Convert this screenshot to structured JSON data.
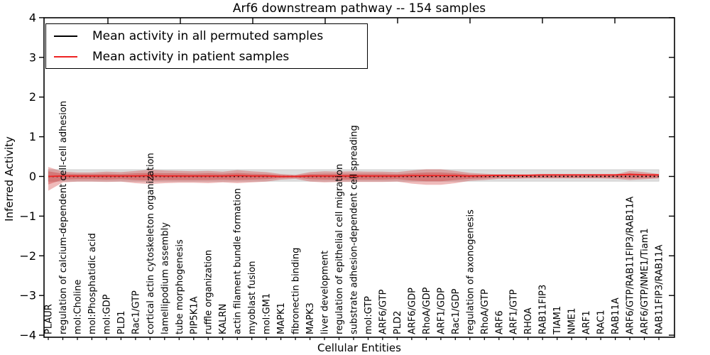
{
  "title": "Arf6 downstream pathway -- 154 samples",
  "axes": {
    "x_label": "Cellular Entities",
    "y_label": "Inferred Activity"
  },
  "legend": {
    "items": [
      {
        "label": "Mean activity in all permuted samples",
        "color": "#000000"
      },
      {
        "label": "Mean activity in patient samples",
        "color": "#ee2222"
      }
    ]
  },
  "chart_data": {
    "type": "line",
    "title": "Arf6 downstream pathway -- 154 samples",
    "xlabel": "Cellular Entities",
    "ylabel": "Inferred Activity",
    "ylim": [
      -4,
      4
    ],
    "yticks": [
      "4",
      "3",
      "2",
      "1",
      "0",
      "−1",
      "−2",
      "−3",
      "−4"
    ],
    "grid": false,
    "legend_position": "upper left",
    "categories": [
      "PLAUR",
      "regulation of calcium-dependent cell-cell adhesion",
      "mol:Choline",
      "mol:Phosphatidic acid",
      "mol:GDP",
      "PLD1",
      "Rac1/GTP",
      "cortical actin cytoskeleton organization",
      "lamellipodium assembly",
      "tube morphogenesis",
      "PIP5K1A",
      "ruffle organization",
      "KALRN",
      "actin filament bundle formation",
      "myoblast fusion",
      "mol:GM1",
      "MAPK1",
      "fibronectin binding",
      "MAPK3",
      "liver development",
      "regulation of epithelial cell migration",
      "substrate adhesion-dependent cell spreading",
      "mol:GTP",
      "ARF6/GTP",
      "PLD2",
      "ARF6/GDP",
      "RhoA/GDP",
      "ARF1/GDP",
      "Rac1/GDP",
      "regulation of axonogenesis",
      "RhoA/GTP",
      "ARF6",
      "ARF1/GTP",
      "RHOA",
      "RAB11FIP3",
      "TIAM1",
      "NME1",
      "ARF1",
      "RAC1",
      "RAB11A",
      "ARF6/GTP/RAB11FIP3/RAB11A",
      "ARF6/GTP/NME1/Tiam1",
      "RAB11FIP3/RAB11A"
    ],
    "series": [
      {
        "name": "Mean activity in all permuted samples",
        "color": "#000000",
        "style": "dashed",
        "values": [
          0,
          0,
          0,
          0,
          0,
          0,
          0,
          0,
          0,
          0,
          0,
          0,
          0,
          0,
          0,
          0,
          0,
          0,
          0,
          0,
          0,
          0,
          0,
          0,
          0,
          0,
          0,
          0,
          0,
          0,
          0,
          0,
          0,
          0,
          0,
          0,
          0,
          0,
          0,
          0,
          0,
          0,
          0
        ]
      },
      {
        "name": "Mean activity in patient samples",
        "color": "#ee2222",
        "style": "solid",
        "values": [
          0.0,
          0.01,
          0.01,
          0.01,
          0.01,
          0.01,
          0.01,
          0.02,
          0.01,
          0.01,
          0.01,
          0.01,
          0.01,
          0.02,
          0.01,
          0.01,
          0.0,
          0.0,
          0.01,
          0.01,
          0.01,
          0.01,
          0.01,
          0.01,
          0.01,
          0.02,
          0.02,
          0.02,
          0.02,
          0.01,
          0.02,
          0.03,
          0.03,
          0.03,
          0.04,
          0.04,
          0.04,
          0.04,
          0.04,
          0.04,
          0.05,
          0.04,
          0.04
        ]
      }
    ],
    "bands": {
      "permuted_range": {
        "color": "#dedede",
        "edge_color": "#c9c9c9",
        "upper": 0.17,
        "lower": -0.12
      },
      "patient_outer": {
        "color": "#cc2929",
        "opacity": 0.32,
        "upper": [
          0.24,
          0.12,
          0.1,
          0.1,
          0.12,
          0.11,
          0.14,
          0.17,
          0.15,
          0.14,
          0.13,
          0.14,
          0.12,
          0.16,
          0.13,
          0.11,
          0.06,
          0.04,
          0.11,
          0.13,
          0.12,
          0.13,
          0.12,
          0.12,
          0.11,
          0.15,
          0.18,
          0.18,
          0.14,
          0.09,
          0.07,
          0.05,
          0.05,
          0.04,
          0.04,
          0.04,
          0.04,
          0.04,
          0.04,
          0.05,
          0.14,
          0.11,
          0.06
        ],
        "lower": [
          -0.36,
          -0.15,
          -0.13,
          -0.13,
          -0.14,
          -0.13,
          -0.17,
          -0.19,
          -0.17,
          -0.16,
          -0.16,
          -0.17,
          -0.15,
          -0.17,
          -0.15,
          -0.13,
          -0.08,
          -0.06,
          -0.13,
          -0.15,
          -0.14,
          -0.14,
          -0.14,
          -0.14,
          -0.13,
          -0.18,
          -0.21,
          -0.21,
          -0.17,
          -0.11,
          -0.09,
          -0.06,
          -0.06,
          -0.05,
          -0.05,
          -0.05,
          -0.05,
          -0.05,
          -0.05,
          -0.06,
          -0.09,
          -0.07,
          -0.05
        ]
      },
      "patient_inner": {
        "color": "#cc2929",
        "opacity": 0.35,
        "upper": [
          0.13,
          0.07,
          0.06,
          0.06,
          0.07,
          0.06,
          0.08,
          0.09,
          0.08,
          0.08,
          0.07,
          0.08,
          0.07,
          0.09,
          0.07,
          0.06,
          0.03,
          0.02,
          0.06,
          0.07,
          0.07,
          0.07,
          0.07,
          0.07,
          0.06,
          0.08,
          0.1,
          0.1,
          0.08,
          0.05,
          0.04,
          0.03,
          0.03,
          0.02,
          0.02,
          0.02,
          0.02,
          0.02,
          0.02,
          0.03,
          0.08,
          0.06,
          0.03
        ],
        "lower": [
          -0.2,
          -0.08,
          -0.07,
          -0.07,
          -0.08,
          -0.07,
          -0.09,
          -0.1,
          -0.09,
          -0.09,
          -0.09,
          -0.09,
          -0.08,
          -0.09,
          -0.08,
          -0.07,
          -0.04,
          -0.03,
          -0.07,
          -0.08,
          -0.08,
          -0.08,
          -0.08,
          -0.08,
          -0.07,
          -0.1,
          -0.12,
          -0.12,
          -0.09,
          -0.06,
          -0.05,
          -0.03,
          -0.03,
          -0.03,
          -0.03,
          -0.03,
          -0.03,
          -0.03,
          -0.03,
          -0.03,
          -0.05,
          -0.04,
          -0.03
        ]
      }
    }
  }
}
